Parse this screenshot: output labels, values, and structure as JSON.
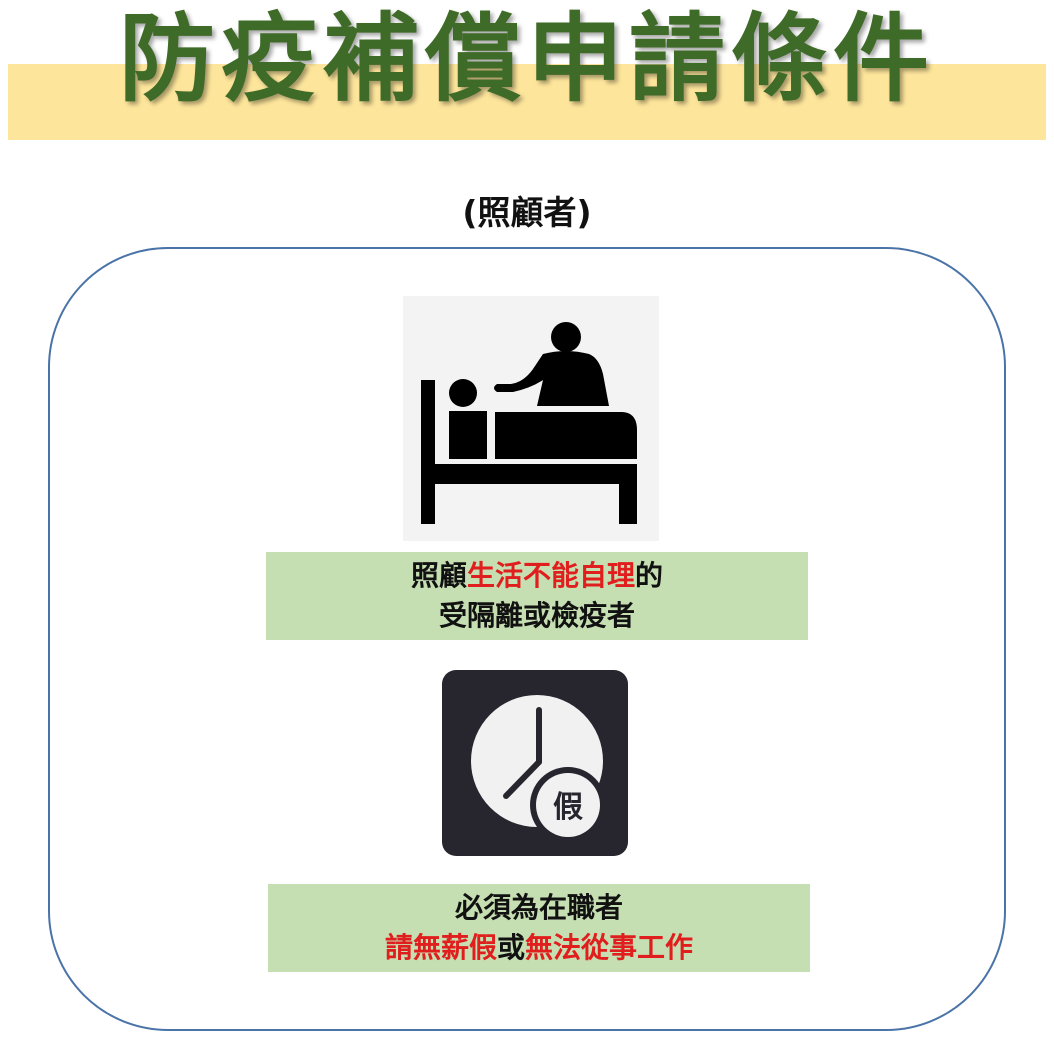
{
  "header": {
    "title": "防疫補償申請條件",
    "subtitle": "(照顧者)"
  },
  "condition_1": {
    "line1_a": "照顧",
    "line1_b": "生活不能自理",
    "line1_c": "的",
    "line2": "受隔離或檢疫者"
  },
  "condition_2": {
    "line1": "必須為在職者",
    "line2_a": "請無薪假",
    "line2_b": "或",
    "line2_c": "無法從事工作"
  },
  "icons": {
    "caregiver": "caregiver-bed-icon",
    "clock": "clock-leave-icon",
    "clock_badge": "假"
  },
  "colors": {
    "title": "#3f6b28",
    "title_band": "#fde59b",
    "panel": "#c6dfb2",
    "highlight": "#e01e1e",
    "card_border": "#4a74a8"
  }
}
